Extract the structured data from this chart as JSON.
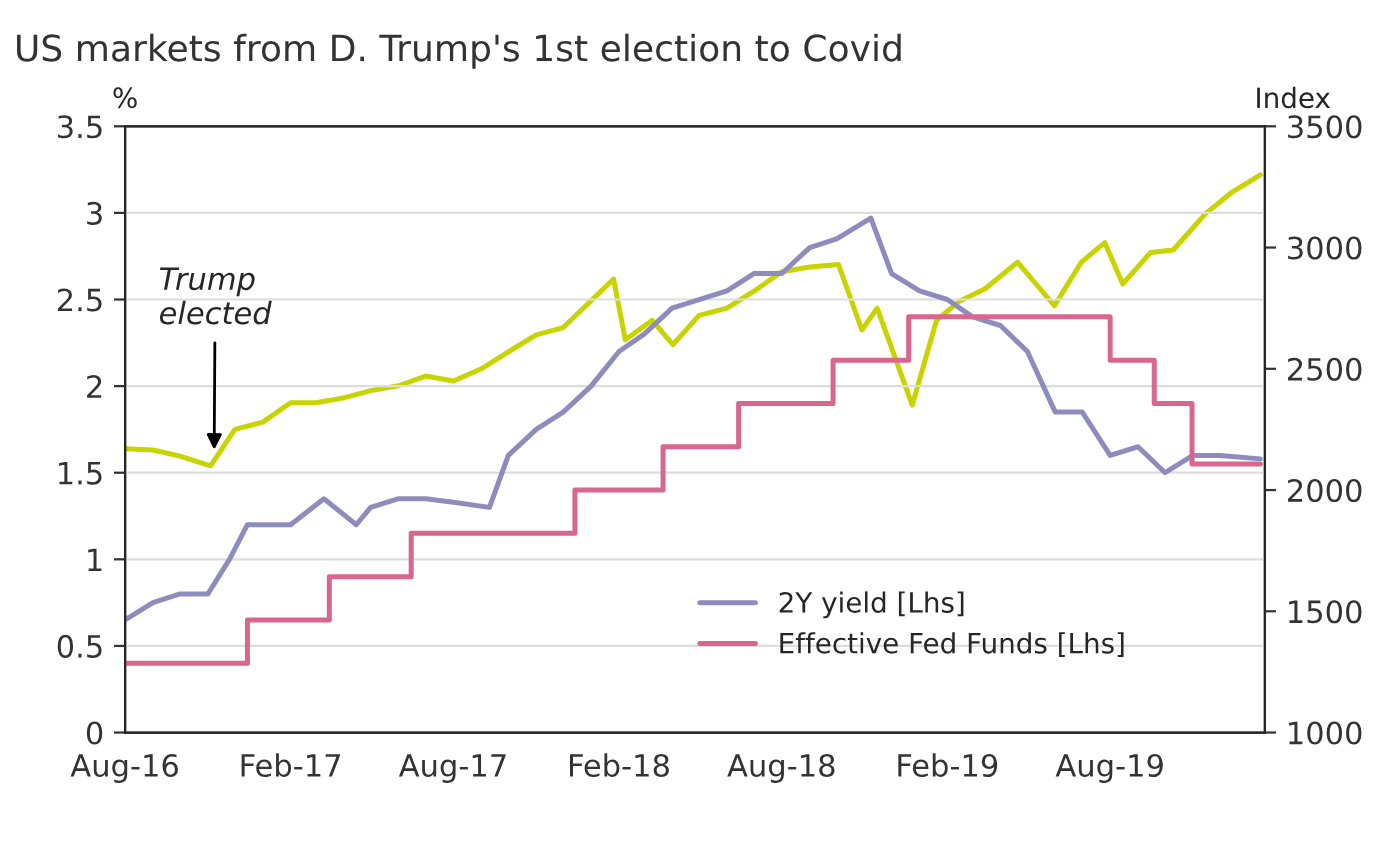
{
  "chart_data": {
    "type": "line",
    "title": "US markets from D. Trump's 1st election to Covid",
    "ylabel": "%",
    "y2label": "Index",
    "xlim": [
      "2016-08-01",
      "2020-01-20"
    ],
    "xticks": [
      {
        "value": "2016-08-01",
        "label": "Aug-16"
      },
      {
        "value": "2017-02-01",
        "label": "Feb-17"
      },
      {
        "value": "2017-08-01",
        "label": "Aug-17"
      },
      {
        "value": "2018-02-01",
        "label": "Feb-18"
      },
      {
        "value": "2018-08-01",
        "label": "Aug-18"
      },
      {
        "value": "2019-02-01",
        "label": "Feb-19"
      },
      {
        "value": "2019-08-01",
        "label": "Aug-19"
      }
    ],
    "ylim": [
      0,
      3.5
    ],
    "yticks": [
      0,
      0.5,
      1,
      1.5,
      2,
      2.5,
      3,
      3.5
    ],
    "y2lim": [
      1000,
      3500
    ],
    "y2ticks": [
      1000,
      1500,
      2000,
      2500,
      3000,
      3500
    ],
    "grid": "y",
    "legend": "bottom right",
    "annotations": [
      {
        "text": "Trump\nelected",
        "x": "2016-11-08",
        "y": 1.6
      }
    ],
    "series": [
      {
        "name": "2Y yield [Lhs]",
        "color": "#8e8cbd",
        "x": [
          "2016-08-01",
          "2016-09-01",
          "2016-10-01",
          "2016-11-01",
          "2016-11-25",
          "2016-12-15",
          "2017-01-01",
          "2017-02-01",
          "2017-03-10",
          "2017-04-15",
          "2017-05-01",
          "2017-06-01",
          "2017-07-01",
          "2017-08-01",
          "2017-09-10",
          "2017-10-01",
          "2017-11-01",
          "2017-12-01",
          "2018-01-01",
          "2018-02-01",
          "2018-03-01",
          "2018-04-01",
          "2018-05-01",
          "2018-06-01",
          "2018-07-01",
          "2018-08-01",
          "2018-09-01",
          "2018-10-01",
          "2018-11-08",
          "2018-12-01",
          "2019-01-01",
          "2019-02-01",
          "2019-03-01",
          "2019-04-01",
          "2019-05-01",
          "2019-06-01",
          "2019-07-01",
          "2019-08-01",
          "2019-09-01",
          "2019-10-01",
          "2019-11-01",
          "2019-12-01",
          "2020-01-15"
        ],
        "values": [
          0.65,
          0.75,
          0.8,
          0.8,
          1.0,
          1.2,
          1.2,
          1.2,
          1.35,
          1.2,
          1.3,
          1.35,
          1.35,
          1.33,
          1.3,
          1.6,
          1.75,
          1.85,
          2.0,
          2.2,
          2.3,
          2.45,
          2.5,
          2.55,
          2.65,
          2.65,
          2.8,
          2.85,
          2.97,
          2.65,
          2.55,
          2.5,
          2.4,
          2.35,
          2.2,
          1.85,
          1.85,
          1.6,
          1.65,
          1.5,
          1.6,
          1.6,
          1.58
        ]
      },
      {
        "name": "Effective Fed Funds [Lhs]",
        "color": "#d9668f",
        "type": "step",
        "x": [
          "2016-08-01",
          "2016-12-15",
          "2017-03-16",
          "2017-06-15",
          "2017-12-14",
          "2018-03-22",
          "2018-06-14",
          "2018-09-27",
          "2018-12-20",
          "2019-08-01",
          "2019-09-19",
          "2019-10-31",
          "2020-01-15"
        ],
        "values": [
          0.4,
          0.65,
          0.9,
          1.15,
          1.4,
          1.65,
          1.9,
          2.15,
          2.4,
          2.15,
          1.9,
          1.55,
          1.55
        ]
      },
      {
        "color": "#c8d400",
        "axis": "y2",
        "x": [
          "2016-08-01",
          "2016-09-01",
          "2016-10-01",
          "2016-11-04",
          "2016-12-01",
          "2017-01-01",
          "2017-02-01",
          "2017-03-01",
          "2017-04-01",
          "2017-05-01",
          "2017-06-01",
          "2017-07-01",
          "2017-08-01",
          "2017-09-01",
          "2017-10-01",
          "2017-11-01",
          "2017-12-01",
          "2018-01-26",
          "2018-02-08",
          "2018-03-10",
          "2018-04-02",
          "2018-05-01",
          "2018-06-01",
          "2018-07-01",
          "2018-08-01",
          "2018-09-01",
          "2018-10-03",
          "2018-10-29",
          "2018-11-15",
          "2018-12-24",
          "2019-01-20",
          "2019-02-15",
          "2019-03-15",
          "2019-04-20",
          "2019-05-31",
          "2019-06-30",
          "2019-07-26",
          "2019-08-15",
          "2019-09-15",
          "2019-10-10",
          "2019-11-15",
          "2019-12-15",
          "2020-01-15"
        ],
        "values": [
          2170,
          2165,
          2140,
          2100,
          2250,
          2280,
          2360,
          2360,
          2380,
          2410,
          2430,
          2470,
          2450,
          2500,
          2570,
          2640,
          2670,
          2870,
          2620,
          2700,
          2600,
          2720,
          2750,
          2820,
          2900,
          2920,
          2930,
          2660,
          2750,
          2350,
          2700,
          2780,
          2830,
          2940,
          2760,
          2940,
          3020,
          2850,
          2980,
          2990,
          3140,
          3230,
          3300
        ]
      }
    ]
  }
}
